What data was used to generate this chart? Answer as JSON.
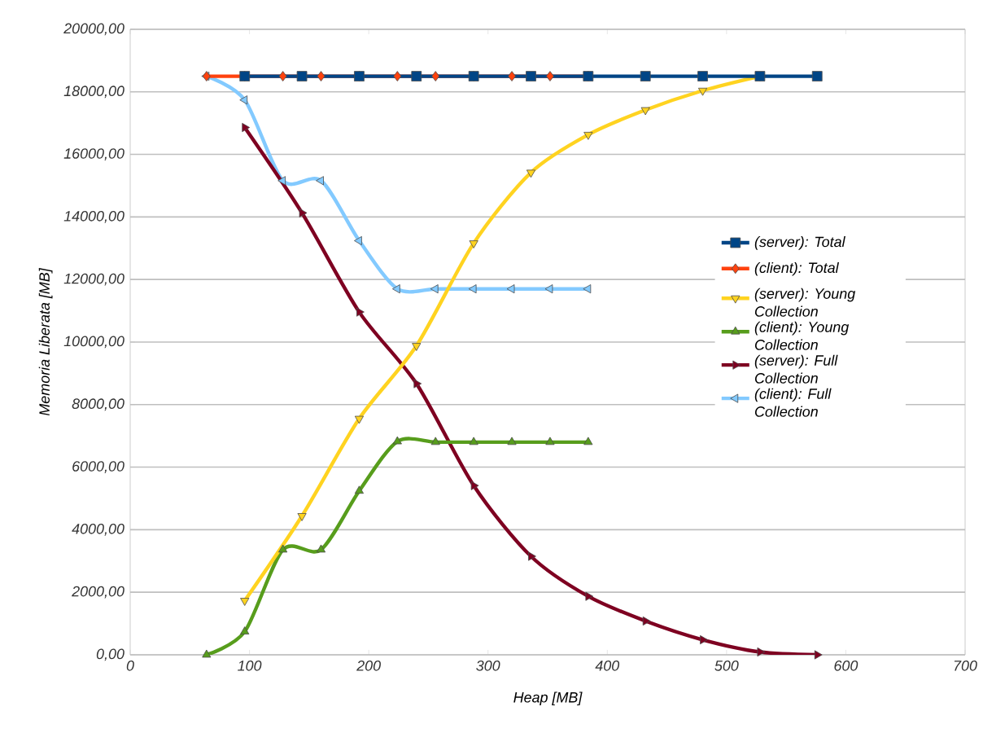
{
  "chart_data": {
    "type": "line",
    "xlabel": "Heap [MB]",
    "ylabel": "Memoria Liberata [MB]",
    "xlim": [
      0,
      700
    ],
    "xticks": [
      0,
      100,
      200,
      300,
      400,
      500,
      600,
      700
    ],
    "ylim": [
      0,
      20000
    ],
    "yticks": [
      {
        "value": 0,
        "label": "0,00"
      },
      {
        "value": 2000,
        "label": "2000,00"
      },
      {
        "value": 4000,
        "label": "4000,00"
      },
      {
        "value": 6000,
        "label": "6000,00"
      },
      {
        "value": 8000,
        "label": "8000,00"
      },
      {
        "value": 10000,
        "label": "10000,00"
      },
      {
        "value": 12000,
        "label": "12000,00"
      },
      {
        "value": 14000,
        "label": "14000,00"
      },
      {
        "value": 16000,
        "label": "16000,00"
      },
      {
        "value": 18000,
        "label": "18000,00"
      },
      {
        "value": 20000,
        "label": "20000,00"
      }
    ],
    "grid": "y",
    "legend": "right",
    "series": [
      {
        "name": "(server): Total",
        "color": "#004586",
        "marker": "square",
        "x": [
          96,
          144,
          192,
          240,
          288,
          336,
          384,
          432,
          480,
          528,
          576
        ],
        "values": [
          18500,
          18500,
          18500,
          18500,
          18500,
          18500,
          18500,
          18500,
          18500,
          18500,
          18500
        ]
      },
      {
        "name": "(client): Total",
        "color": "#ff420e",
        "marker": "diamond",
        "x": [
          64,
          96,
          128,
          160,
          192,
          224,
          256,
          288,
          320,
          352,
          384
        ],
        "values": [
          18500,
          18500,
          18500,
          18500,
          18500,
          18500,
          18500,
          18500,
          18500,
          18500,
          18500
        ]
      },
      {
        "name": "(server): Young Collection",
        "color": "#ffd320",
        "marker": "triangle",
        "x": [
          96,
          144,
          192,
          240,
          288,
          336,
          384,
          432,
          480,
          528
        ],
        "values": [
          1730,
          4440,
          7550,
          9880,
          13160,
          15420,
          16630,
          17420,
          18040,
          18500
        ]
      },
      {
        "name": "(client): Young Collection",
        "color": "#579d1c",
        "marker": "triangle",
        "x": [
          64,
          96,
          128,
          160,
          192,
          224,
          256,
          288,
          320,
          352,
          384
        ],
        "values": [
          0,
          740,
          3360,
          3360,
          5240,
          6820,
          6800,
          6800,
          6800,
          6800,
          6800
        ]
      },
      {
        "name": "(server): Full Collection",
        "color": "#7e0021",
        "marker": "triangle",
        "x": [
          96,
          144,
          192,
          240,
          288,
          336,
          384,
          432,
          480,
          528,
          576
        ],
        "values": [
          16860,
          14130,
          10960,
          8670,
          5410,
          3150,
          1870,
          1080,
          480,
          90,
          0
        ]
      },
      {
        "name": "(client): Full Collection",
        "color": "#83caff",
        "marker": "triangle",
        "x": [
          64,
          96,
          128,
          160,
          192,
          224,
          256,
          288,
          320,
          352,
          384
        ],
        "values": [
          18500,
          17740,
          15160,
          15160,
          13240,
          11700,
          11700,
          11700,
          11700,
          11700,
          11700
        ]
      }
    ]
  }
}
